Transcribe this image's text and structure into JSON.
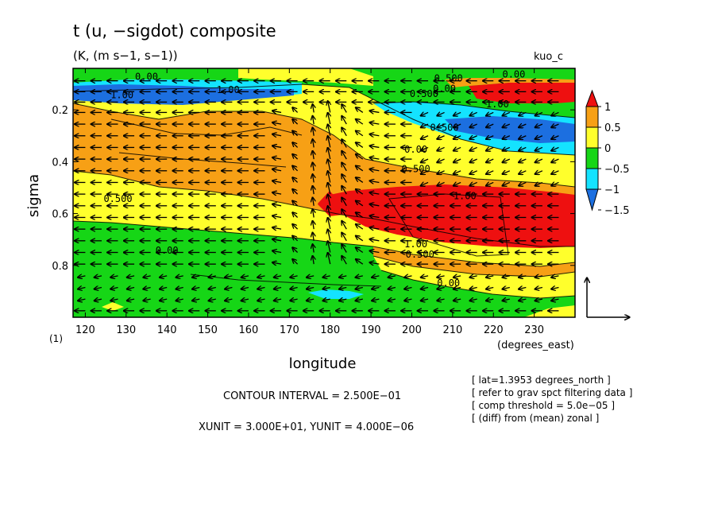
{
  "chart_data": {
    "type": "heatmap",
    "title": "t (u, −sigdot) composite",
    "subtitle": "(K, (m s−1, s−1))",
    "model_label": "kuo_c",
    "xlabel": "longitude",
    "x_unit_label": "(degrees_east)",
    "ylabel": "sigma",
    "y_unit_label": "(1)",
    "xlim": [
      117,
      240
    ],
    "ylim": [
      1.0,
      0.04
    ],
    "y_inverted": true,
    "grid": false,
    "x_ticks": [
      120,
      130,
      140,
      150,
      160,
      170,
      180,
      190,
      200,
      210,
      220,
      230
    ],
    "y_ticks": [
      0.2,
      0.4,
      0.6,
      0.8
    ],
    "y_tick_labels": [
      "0.2",
      "0.4",
      "0.6",
      "0.8"
    ],
    "colorbar": {
      "placement": "right",
      "levels": [
        -1.75,
        -1.5,
        -1.0,
        -0.5,
        0.0,
        0.5,
        1.0,
        1.25
      ],
      "colors": [
        "#1c6fe0",
        "#14e3ff",
        "#16d616",
        "#ffff2c",
        "#f7a015",
        "#ee1010"
      ],
      "tick_labels": [
        "1",
        "0.5",
        "0",
        "−0.5",
        "−1",
        "−1.5"
      ]
    },
    "contour_labels": [
      {
        "text": "0.00",
        "lon": 135,
        "sigma": 0.085
      },
      {
        "text": "1.00",
        "lon": 129,
        "sigma": 0.155
      },
      {
        "text": "1.00",
        "lon": 155,
        "sigma": 0.135
      },
      {
        "text": "0.500",
        "lon": 209,
        "sigma": 0.09
      },
      {
        "text": "0.00",
        "lon": 225,
        "sigma": 0.075
      },
      {
        "text": "0.00",
        "lon": 208,
        "sigma": 0.13
      },
      {
        "text": "0.500",
        "lon": 203,
        "sigma": 0.15
      },
      {
        "text": "1.00",
        "lon": 221,
        "sigma": 0.19
      },
      {
        "text": "0.500",
        "lon": 208,
        "sigma": 0.28
      },
      {
        "text": "0.00",
        "lon": 201,
        "sigma": 0.365
      },
      {
        "text": "0.500",
        "lon": 201,
        "sigma": 0.44
      },
      {
        "text": "1.00",
        "lon": 213,
        "sigma": 0.545
      },
      {
        "text": "0.500",
        "lon": 128,
        "sigma": 0.555
      },
      {
        "text": "0.00",
        "lon": 140,
        "sigma": 0.755
      },
      {
        "text": "1.00",
        "lon": 201,
        "sigma": 0.73
      },
      {
        "text": "0.500",
        "lon": 202,
        "sigma": 0.77
      },
      {
        "text": "0.00",
        "lon": 209,
        "sigma": 0.88
      }
    ],
    "vector_reference": {
      "xunit": 30.0,
      "yunit": 4e-06
    },
    "contour_interval": 0.25
  },
  "footer": {
    "contour_interval_text": "CONTOUR INTERVAL = 2.500E−01",
    "unit_text": "XUNIT = 3.000E+01, YUNIT = 4.000E−06",
    "info_lines": [
      "[ lat=1.3953 degrees_north ]",
      "[ refer to grav spct filtering data ]",
      "[ comp threshold = 5.0e−05 ]",
      "[ (diff) from (mean) zonal ]"
    ]
  }
}
